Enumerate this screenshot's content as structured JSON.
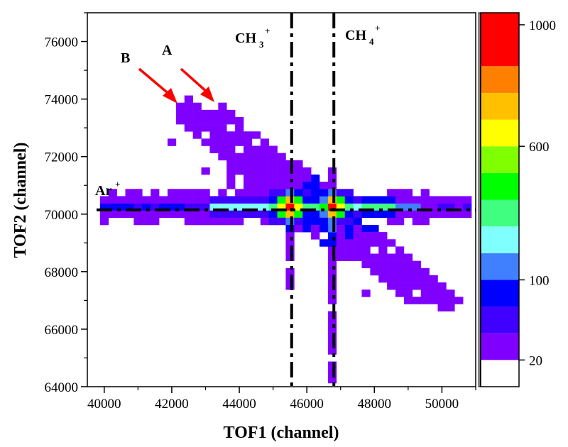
{
  "chart_data": {
    "type": "heatmap",
    "title": "",
    "xlabel": "TOF1 (channel)",
    "ylabel": "TOF2 (channel)",
    "xlim": [
      39500,
      51000
    ],
    "ylim": [
      64000,
      77000
    ],
    "x_ticks": [
      40000,
      42000,
      44000,
      46000,
      48000,
      50000
    ],
    "x_tick_labels": [
      "40000",
      "42000",
      "44000",
      "46000",
      "48000",
      "50000"
    ],
    "y_ticks": [
      64000,
      66000,
      68000,
      70000,
      72000,
      74000,
      76000
    ],
    "y_tick_labels": [
      "64000",
      "66000",
      "68000",
      "70000",
      "72000",
      "74000",
      "76000"
    ],
    "grid": false,
    "bin_size": [
      250,
      250
    ],
    "colorbar": {
      "levels": [
        "#ffffff",
        "#8000ff",
        "#4000ff",
        "#0000ff",
        "#4080ff",
        "#80ffff",
        "#40ff80",
        "#00ff00",
        "#80ff00",
        "#ffff00",
        "#ffc000",
        "#ff8000",
        "#ff0000"
      ],
      "tick_labels": [
        "20",
        "100",
        "600",
        "1000"
      ],
      "tick_levels": [
        1,
        4,
        9,
        12
      ],
      "placement": "right"
    },
    "reference_lines": [
      {
        "orientation": "horizontal",
        "value": 70150,
        "label": "Ar+",
        "style": "dash-dot"
      },
      {
        "orientation": "vertical",
        "value": 45550,
        "label": "CH3+",
        "style": "dash-dot"
      },
      {
        "orientation": "vertical",
        "value": 46800,
        "label": "CH4+",
        "style": "dash-dot"
      }
    ],
    "annotations": [
      {
        "text": "A",
        "arrow_color": "#ff0000",
        "points_to": [
          43250,
          73850
        ]
      },
      {
        "text": "B",
        "arrow_color": "#ff0000",
        "points_to": [
          42250,
          73800
        ]
      }
    ],
    "features": [
      {
        "name": "Ar+ horizontal band",
        "y": 70150,
        "x_range": [
          40000,
          51000
        ],
        "peak_level": 6
      },
      {
        "name": "CH3+ peak",
        "x": 45500,
        "y": 70150,
        "peak_count": 1000
      },
      {
        "name": "CH4+ peak",
        "x": 46800,
        "y": 70150,
        "peak_count": 1000
      },
      {
        "name": "coincidence line A",
        "from": [
          43300,
          73500
        ],
        "to": [
          50300,
          66900
        ],
        "level": 1
      },
      {
        "name": "coincidence line B",
        "from": [
          42300,
          73700
        ],
        "to": [
          49500,
          67200
        ],
        "level": 1
      },
      {
        "name": "CH4+ vertical streak",
        "x": 46800,
        "y_range": [
          64000,
          71500
        ],
        "level": 1
      }
    ]
  },
  "labels": {
    "ar": "Ar",
    "ch3_base": "CH",
    "ch3_sub": "3",
    "ch4_base": "CH",
    "ch4_sub": "4",
    "plus": "+",
    "a": "A",
    "b": "B"
  }
}
